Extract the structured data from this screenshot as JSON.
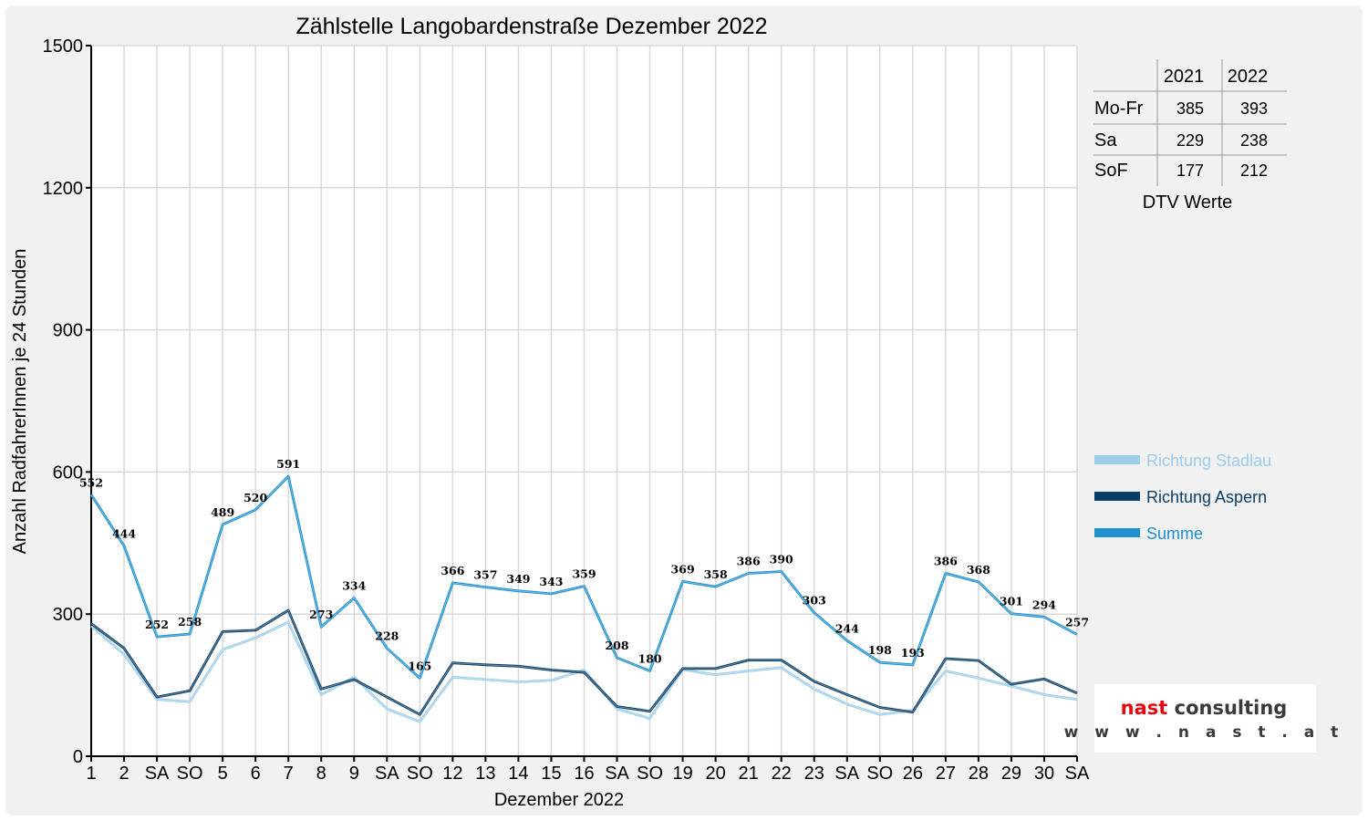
{
  "chart_data": {
    "type": "line",
    "title": "Zählstelle Langobardenstraße Dezember 2022",
    "xlabel": "Dezember 2022",
    "ylabel": "Anzahl RadfahrerInnen je 24 Stunden",
    "ylim": [
      0,
      1500
    ],
    "yticks": [
      "0",
      "300",
      "600",
      "900",
      "1200",
      "1500"
    ],
    "grid": true,
    "legend_position": "right",
    "categories": [
      "1",
      "2",
      "SA",
      "SO",
      "5",
      "6",
      "7",
      "8",
      "9",
      "SA",
      "SO",
      "12",
      "13",
      "14",
      "15",
      "16",
      "SA",
      "SO",
      "19",
      "20",
      "21",
      "22",
      "23",
      "SA",
      "SO",
      "26",
      "27",
      "28",
      "29",
      "30",
      "SA"
    ],
    "red_categories": [
      3,
      7,
      10,
      17,
      24,
      25
    ],
    "series": [
      {
        "name": "Richtung Stadlau",
        "color": "#9ccde9",
        "values": [
          275,
          215,
          120,
          115,
          225,
          250,
          283,
          130,
          167,
          100,
          73,
          167,
          162,
          157,
          160,
          182,
          100,
          80,
          183,
          172,
          180,
          187,
          142,
          110,
          88,
          97,
          180,
          165,
          148,
          130,
          120
        ]
      },
      {
        "name": "Richtung Aspern",
        "color": "#0b3d66",
        "values": [
          280,
          228,
          125,
          138,
          263,
          266,
          308,
          142,
          162,
          125,
          88,
          197,
          193,
          190,
          182,
          177,
          105,
          95,
          185,
          185,
          203,
          203,
          158,
          130,
          103,
          93,
          206,
          202,
          152,
          163,
          133
        ]
      },
      {
        "name": "Summe",
        "color": "#1e90cf",
        "values": [
          552,
          444,
          252,
          258,
          489,
          520,
          591,
          273,
          334,
          228,
          165,
          366,
          357,
          349,
          343,
          359,
          208,
          180,
          369,
          358,
          386,
          390,
          303,
          244,
          198,
          193,
          386,
          368,
          301,
          294,
          257
        ]
      }
    ],
    "data_labels": [
      "552",
      "444",
      "252",
      "258",
      "489",
      "520",
      "591",
      "273",
      "334",
      "228",
      "165",
      "366",
      "357",
      "349",
      "343",
      "359",
      "208",
      "180",
      "369",
      "358",
      "386",
      "390",
      "303",
      "244",
      "198",
      "193",
      "386",
      "368",
      "301",
      "294",
      "257"
    ]
  },
  "dtv_table": {
    "caption": "DTV Werte",
    "headers": [
      "",
      "2021",
      "2022"
    ],
    "rows": [
      {
        "label": "Mo-Fr",
        "v2021": "385",
        "v2022": "393"
      },
      {
        "label": "Sa",
        "v2021": "229",
        "v2022": "238"
      },
      {
        "label": "SoF",
        "v2021": "177",
        "v2022": "212"
      }
    ]
  },
  "logo": {
    "name": "nast consulting",
    "url": "w w w . n a s t . a t",
    "accent_color": "#e30613",
    "text_color": "#3a3a3a"
  }
}
